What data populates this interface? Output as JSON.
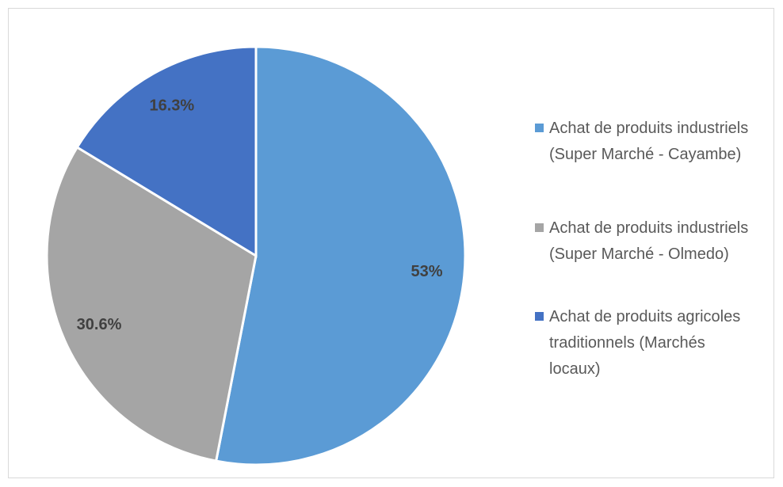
{
  "chart_data": {
    "type": "pie",
    "categories": [
      "Achat de produits industriels (Super Marché - Cayambe)",
      "Achat de produits industriels (Super Marché - Olmedo)",
      "Achat de produits agricoles traditionnels (Marchés locaux)"
    ],
    "values": [
      53,
      30.6,
      16.3
    ],
    "value_labels": [
      "53%",
      "30.6%",
      "16.3%"
    ],
    "colors": [
      "#5b9bd5",
      "#a5a5a5",
      "#4472c4"
    ],
    "legend": "right"
  }
}
